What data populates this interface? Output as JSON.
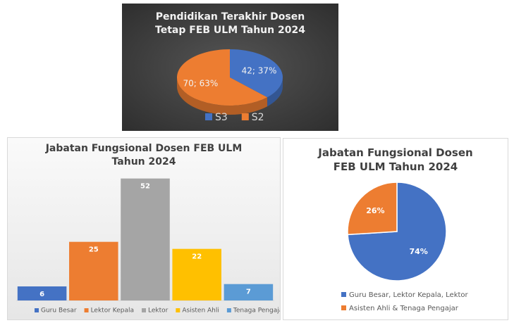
{
  "chart_data": [
    {
      "type": "pie",
      "title": "Pendidikan Terakhir Dosen Tetap FEB ULM Tahun 2024",
      "categories": [
        "S3",
        "S2"
      ],
      "values": [
        42,
        70
      ],
      "value_labels": [
        "42; 37%",
        "70; 63%"
      ],
      "colors": [
        "#4472c4",
        "#ed7d31"
      ],
      "3d": true,
      "legend": "bottom"
    },
    {
      "type": "bar",
      "title": "Jabatan Fungsional Dosen FEB ULM Tahun 2024",
      "categories": [
        "Guru Besar",
        "Lektor Kepala",
        "Lektor",
        "Asisten Ahli",
        "Tenaga Pengajar"
      ],
      "values": [
        6,
        25,
        52,
        22,
        7
      ],
      "colors": [
        "#4472c4",
        "#ed7d31",
        "#a5a5a5",
        "#ffc000",
        "#5b9bd5"
      ],
      "ylim": [
        0,
        60
      ],
      "legend": "bottom"
    },
    {
      "type": "pie",
      "title": "Jabatan Fungsional Dosen FEB ULM Tahun 2024",
      "categories": [
        "Guru Besar, Lektor Kepala, Lektor",
        "Asisten Ahli & Tenaga Pengajar"
      ],
      "values": [
        74,
        26
      ],
      "value_labels": [
        "74%",
        "26%"
      ],
      "colors": [
        "#4472c4",
        "#ed7d31"
      ],
      "legend": "bottom-left"
    }
  ]
}
